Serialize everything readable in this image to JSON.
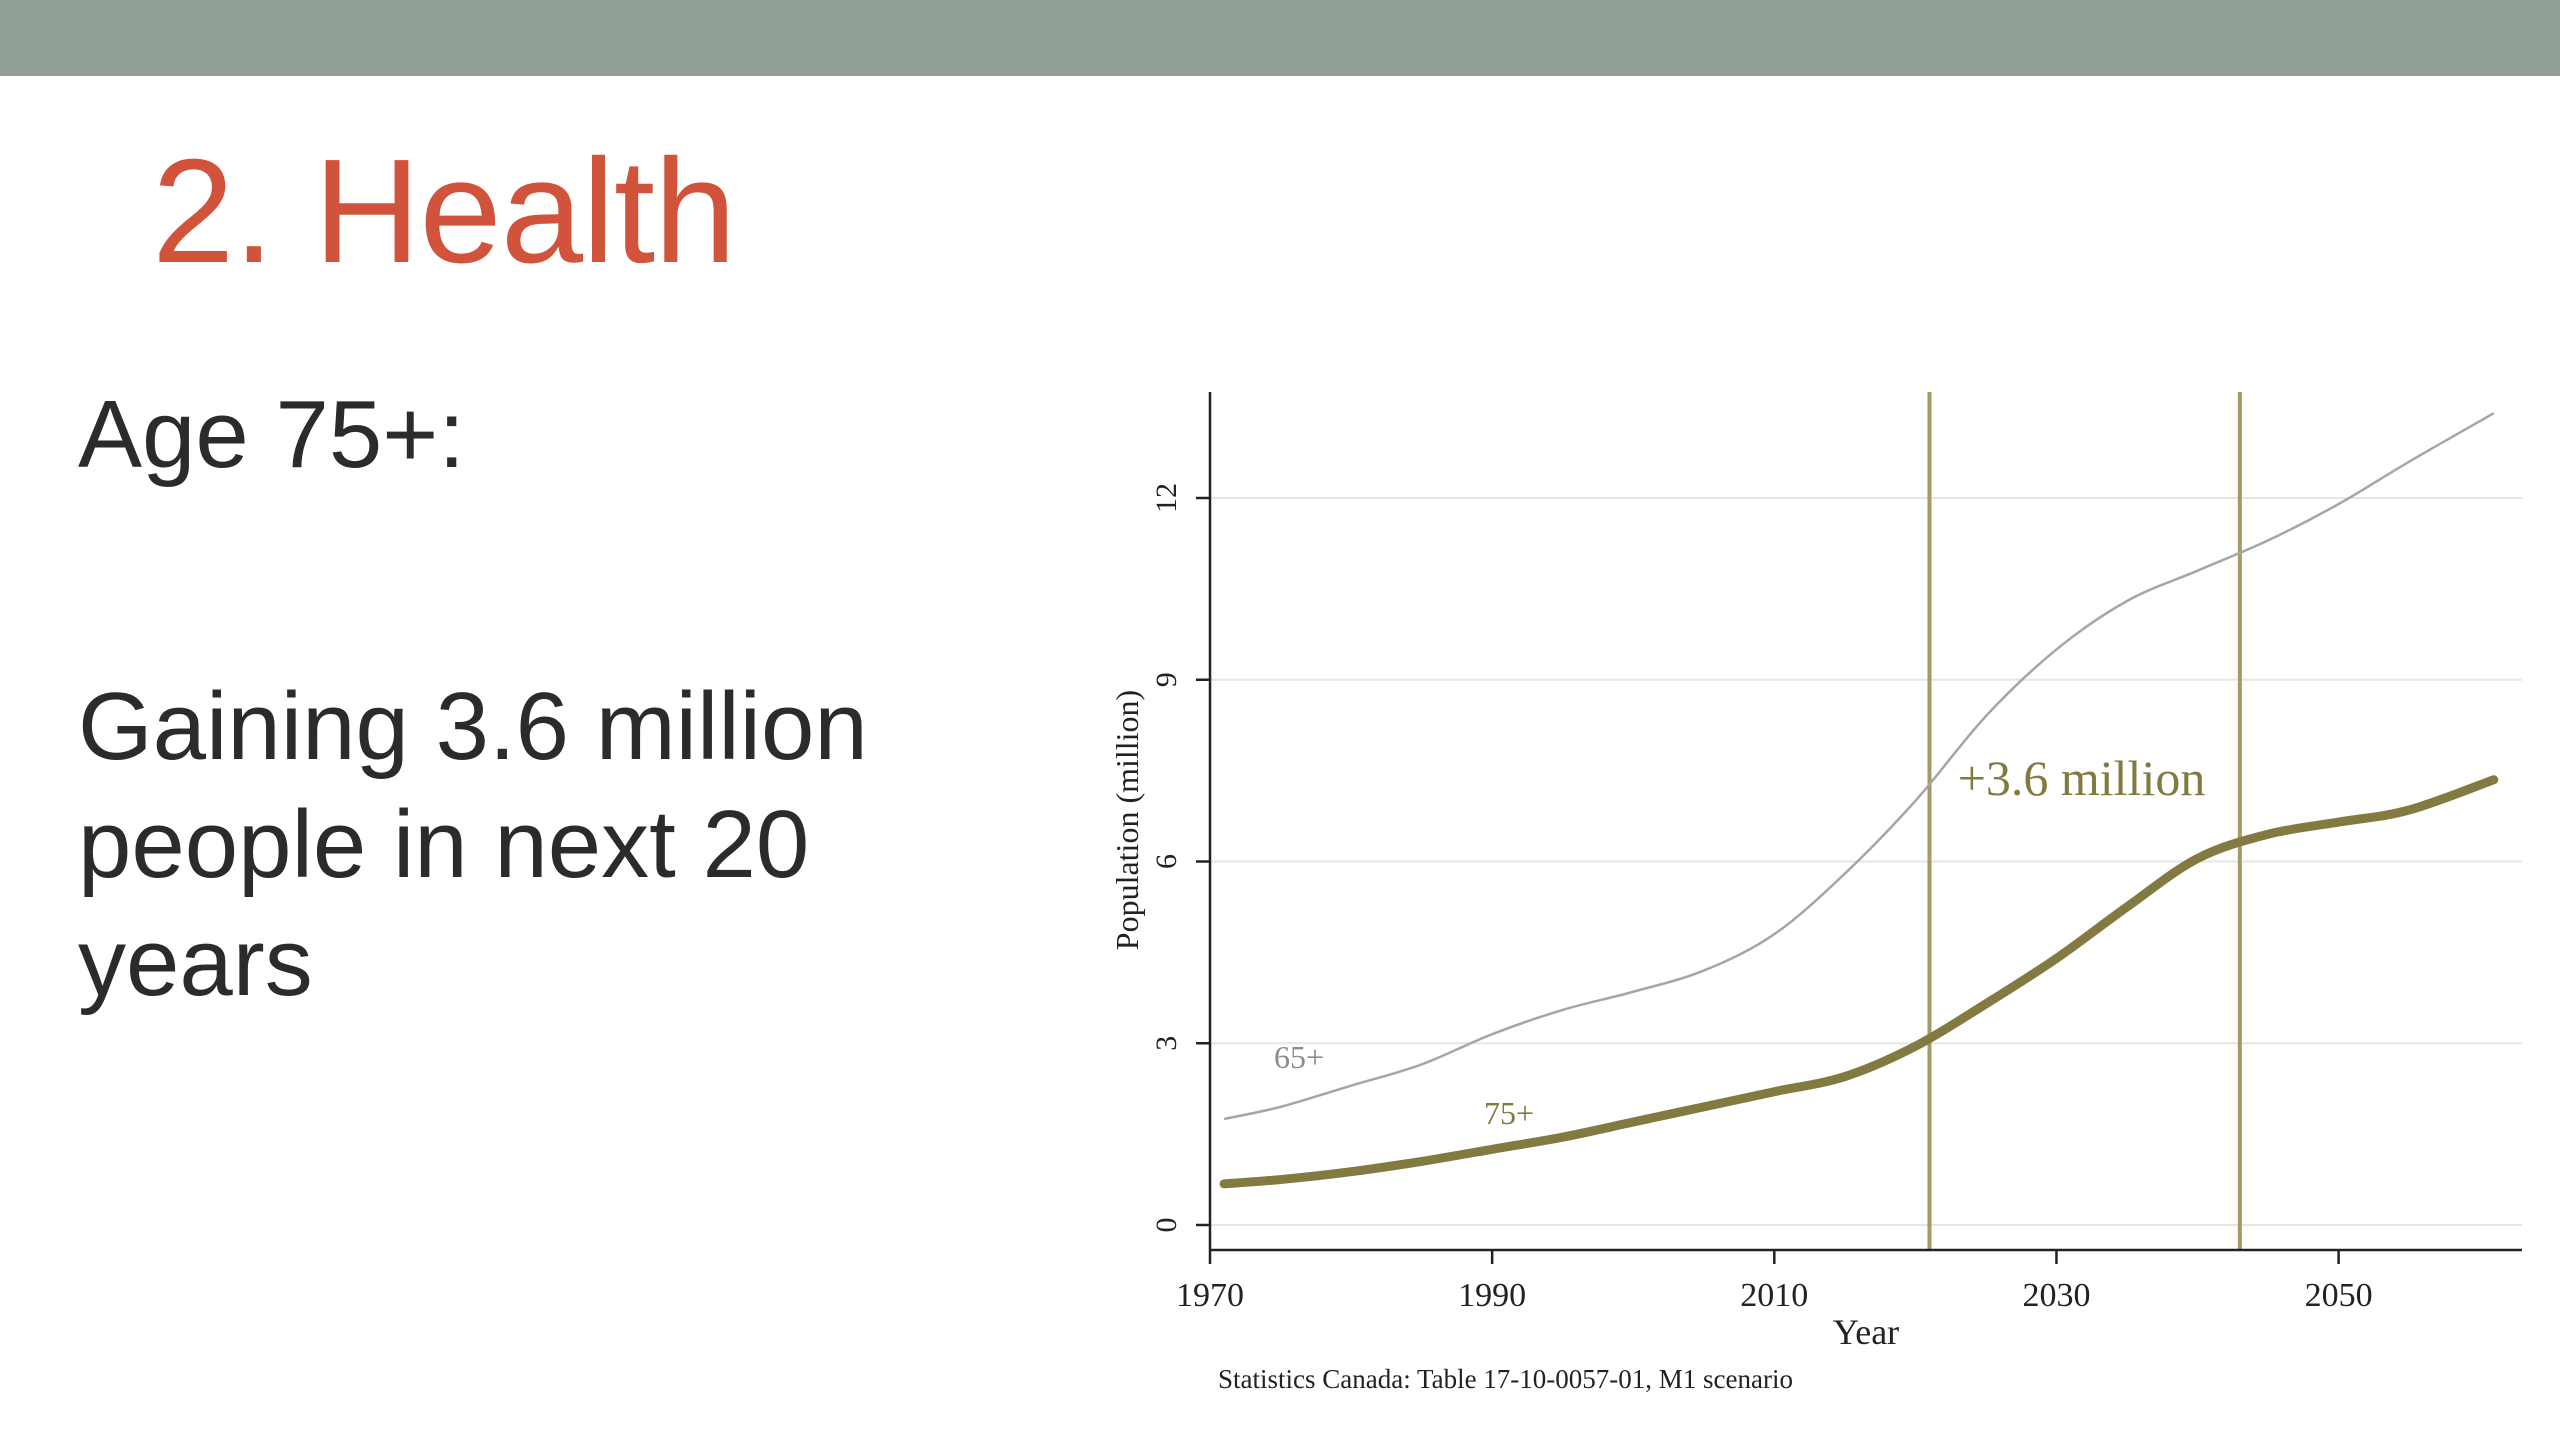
{
  "slide": {
    "title": "2. Health",
    "label": "Age 75+:",
    "body": "Gaining 3.6 million people in next 20 years"
  },
  "colors": {
    "top_bar": "#909e96",
    "title": "#d1533b",
    "series_75": "#837a41",
    "series_65": "#a6a6a6",
    "marker_line": "#a49a67"
  },
  "chart_data": {
    "type": "line",
    "title": "",
    "xlabel": "Year",
    "ylabel": "Population (million)",
    "xlim": [
      1970,
      2063
    ],
    "ylim": [
      0,
      13.5
    ],
    "xticks": [
      1970,
      1990,
      2010,
      2030,
      2050
    ],
    "yticks": [
      0,
      3,
      6,
      9,
      12
    ],
    "grid": true,
    "source": "Statistics Canada: Table 17-10-0057-01, M1 scenario",
    "series": [
      {
        "name": "65+",
        "label": "65+",
        "x": [
          1971,
          1975,
          1980,
          1985,
          1990,
          1995,
          2000,
          2005,
          2010,
          2015,
          2020,
          2025,
          2030,
          2035,
          2040,
          2045,
          2050,
          2055,
          2061
        ],
        "values": [
          1.75,
          1.95,
          2.3,
          2.65,
          3.15,
          3.55,
          3.85,
          4.2,
          4.8,
          5.8,
          7.0,
          8.4,
          9.5,
          10.3,
          10.8,
          11.3,
          11.9,
          12.6,
          13.4
        ]
      },
      {
        "name": "75+",
        "label": "75+",
        "x": [
          1971,
          1975,
          1980,
          1985,
          1990,
          1995,
          2000,
          2005,
          2010,
          2015,
          2020,
          2025,
          2030,
          2035,
          2040,
          2045,
          2050,
          2055,
          2061
        ],
        "values": [
          0.68,
          0.75,
          0.88,
          1.05,
          1.25,
          1.45,
          1.7,
          1.95,
          2.2,
          2.45,
          2.95,
          3.65,
          4.4,
          5.25,
          6.05,
          6.45,
          6.65,
          6.85,
          7.35
        ]
      }
    ],
    "vlines": [
      2021,
      2043
    ],
    "annotations": [
      {
        "text": "+3.6 million",
        "x": 2023,
        "y": 7.1
      }
    ]
  }
}
